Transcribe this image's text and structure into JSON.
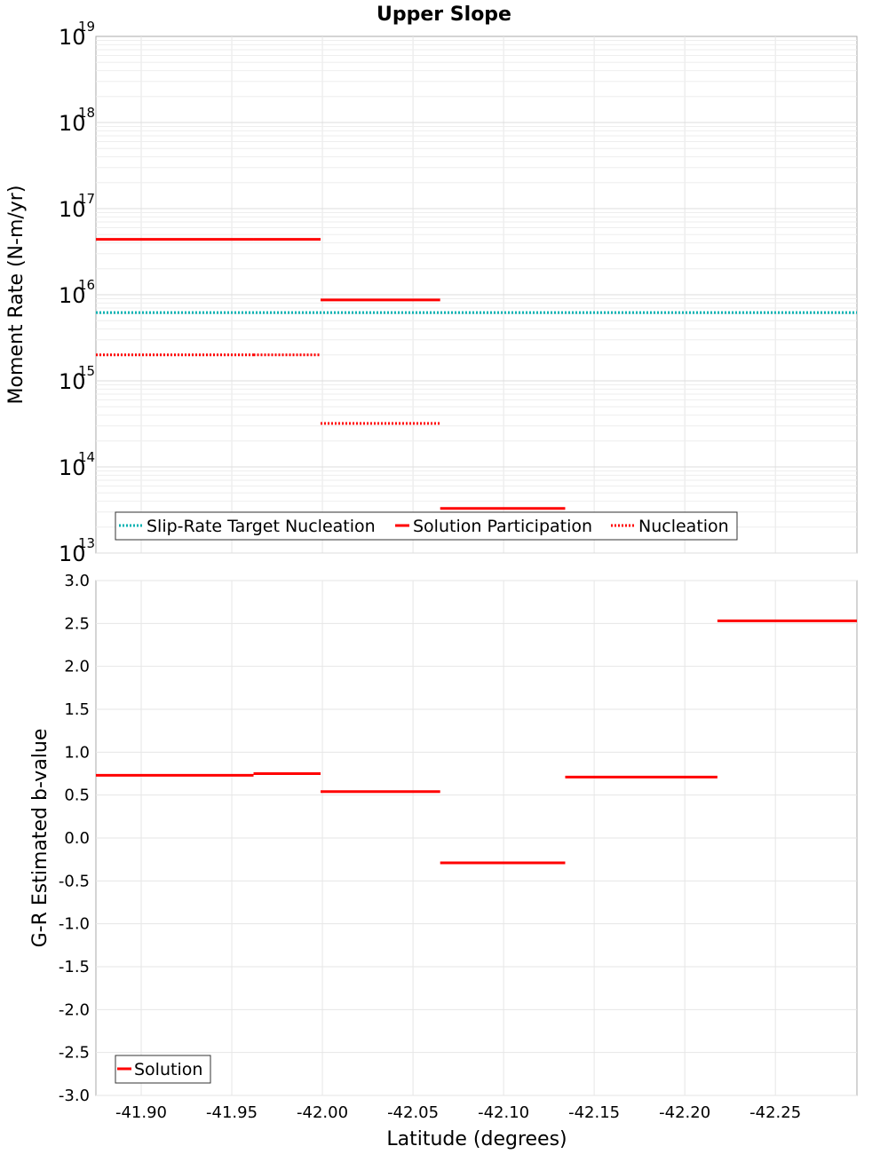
{
  "chart_data": [
    {
      "type": "line",
      "title": "Upper Slope",
      "ylabel": "Moment Rate (N-m/yr)",
      "xlabel": "",
      "xlim": [
        -41.875,
        -42.295
      ],
      "ylim": [
        10000000000000.0,
        1e+19
      ],
      "yscale": "log",
      "grid": true,
      "legend_position": "bottom-left",
      "y_tick_labels": [
        {
          "base": "10",
          "exp": "13",
          "value": 10000000000000.0
        },
        {
          "base": "10",
          "exp": "14",
          "value": 100000000000000.0
        },
        {
          "base": "10",
          "exp": "15",
          "value": 1000000000000000.0
        },
        {
          "base": "10",
          "exp": "16",
          "value": 1e+16
        },
        {
          "base": "10",
          "exp": "17",
          "value": 1e+17
        },
        {
          "base": "10",
          "exp": "18",
          "value": 1e+18
        },
        {
          "base": "10",
          "exp": "19",
          "value": 1e+19
        }
      ],
      "series": [
        {
          "name": "Slip-Rate Target Nucleation",
          "color": "#00b2b2",
          "style": "dotted",
          "segments": [
            {
              "x0": -41.875,
              "x1": -42.295,
              "y": 6200000000000000.0
            }
          ]
        },
        {
          "name": "Solution Participation",
          "color": "#ff0000",
          "style": "solid",
          "segments": [
            {
              "x0": -41.875,
              "x1": -41.962,
              "y": 4.4e+16
            },
            {
              "x0": -41.962,
              "x1": -41.999,
              "y": 4.4e+16
            },
            {
              "x0": -41.999,
              "x1": -42.065,
              "y": 8700000000000000.0
            },
            {
              "x0": -42.065,
              "x1": -42.134,
              "y": 33000000000000.0
            }
          ]
        },
        {
          "name": "Nucleation",
          "color": "#ff0000",
          "style": "dotted",
          "segments": [
            {
              "x0": -41.875,
              "x1": -41.962,
              "y": 2000000000000000.0
            },
            {
              "x0": -41.962,
              "x1": -41.999,
              "y": 2000000000000000.0
            },
            {
              "x0": -41.999,
              "x1": -42.065,
              "y": 320000000000000.0
            }
          ]
        }
      ]
    },
    {
      "type": "line",
      "title": "",
      "ylabel": "G-R Estimated b-value",
      "xlabel": "Latitude (degrees)",
      "xlim": [
        -41.875,
        -42.295
      ],
      "ylim": [
        -3.0,
        3.0
      ],
      "x_ticks": [
        -41.9,
        -41.95,
        -42.0,
        -42.05,
        -42.1,
        -42.15,
        -42.2,
        -42.25
      ],
      "x_tick_labels": [
        "-41.90",
        "-41.95",
        "-42.00",
        "-42.05",
        "-42.10",
        "-42.15",
        "-42.20",
        "-42.25"
      ],
      "y_ticks": [
        3.0,
        2.5,
        2.0,
        1.5,
        1.0,
        0.5,
        0.0,
        -0.5,
        -1.0,
        -1.5,
        -2.0,
        -2.5,
        -3.0
      ],
      "y_tick_labels": [
        "3.0",
        "2.5",
        "2.0",
        "1.5",
        "1.0",
        "0.5",
        "0.0",
        "-0.5",
        "-1.0",
        "-1.5",
        "-2.0",
        "-2.5",
        "-3.0"
      ],
      "grid": true,
      "legend_position": "bottom-left",
      "series": [
        {
          "name": "Solution",
          "color": "#ff0000",
          "style": "solid",
          "segments": [
            {
              "x0": -41.875,
              "x1": -41.962,
              "y": 0.73
            },
            {
              "x0": -41.962,
              "x1": -41.999,
              "y": 0.75
            },
            {
              "x0": -41.999,
              "x1": -42.065,
              "y": 0.54
            },
            {
              "x0": -42.065,
              "x1": -42.134,
              "y": -0.29
            },
            {
              "x0": -42.134,
              "x1": -42.218,
              "y": 0.71
            },
            {
              "x0": -42.218,
              "x1": -42.295,
              "y": 2.53
            }
          ]
        }
      ]
    }
  ]
}
